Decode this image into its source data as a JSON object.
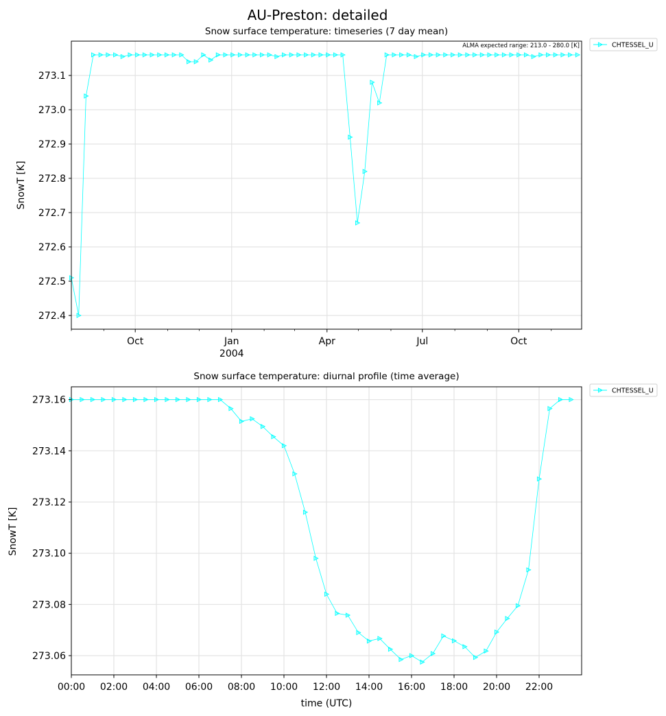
{
  "figure": {
    "suptitle": "AU-Preston: detailed"
  },
  "chart_data": [
    {
      "type": "line",
      "title": "Snow surface temperature: timeseries (7 day mean)",
      "xlabel": "",
      "ylabel": "SnowT [K]",
      "annotation": "ALMA expected range: 213.0 - 280.0 [K]",
      "legend": {
        "placement": "outside-top-right",
        "entries": [
          "CHTESSEL_U"
        ]
      },
      "grid": true,
      "xaxis_type": "date",
      "xlim": [
        "2003-08-01",
        "2004-11-30"
      ],
      "ylim": [
        272.36,
        273.2
      ],
      "yticks": [
        272.4,
        272.5,
        272.6,
        272.7,
        272.8,
        272.9,
        273.0,
        273.1
      ],
      "ytick_labels": [
        "272.4",
        "272.5",
        "272.6",
        "272.7",
        "272.8",
        "272.9",
        "273.0",
        "273.1"
      ],
      "xticks": [
        {
          "date": "2003-10-01",
          "label": "Oct",
          "sub": ""
        },
        {
          "date": "2004-01-01",
          "label": "Jan",
          "sub": "2004"
        },
        {
          "date": "2004-04-01",
          "label": "Apr",
          "sub": ""
        },
        {
          "date": "2004-07-01",
          "label": "Jul",
          "sub": ""
        },
        {
          "date": "2004-10-01",
          "label": "Oct",
          "sub": ""
        }
      ],
      "xminor_ticks": [
        "2003-08-01",
        "2003-09-01",
        "2003-11-01",
        "2003-12-01",
        "2004-02-01",
        "2004-03-01",
        "2004-05-01",
        "2004-06-01",
        "2004-08-01",
        "2004-09-01",
        "2004-11-01",
        "2004-12-01"
      ],
      "series": [
        {
          "name": "CHTESSEL_U",
          "color": "#00ffff",
          "marker": "triangle-right",
          "x": [
            "2003-08-01",
            "2003-08-08",
            "2003-08-15",
            "2003-08-22",
            "2003-08-29",
            "2003-09-05",
            "2003-09-12",
            "2003-09-19",
            "2003-09-26",
            "2003-10-03",
            "2003-10-10",
            "2003-10-17",
            "2003-10-24",
            "2003-10-31",
            "2003-11-07",
            "2003-11-14",
            "2003-11-21",
            "2003-11-28",
            "2003-12-05",
            "2003-12-12",
            "2003-12-19",
            "2003-12-26",
            "2004-01-02",
            "2004-01-09",
            "2004-01-16",
            "2004-01-23",
            "2004-01-30",
            "2004-02-06",
            "2004-02-13",
            "2004-02-20",
            "2004-02-27",
            "2004-03-05",
            "2004-03-12",
            "2004-03-19",
            "2004-03-26",
            "2004-04-02",
            "2004-04-09",
            "2004-04-16",
            "2004-04-23",
            "2004-04-30",
            "2004-05-07",
            "2004-05-14",
            "2004-05-21",
            "2004-05-28",
            "2004-06-04",
            "2004-06-11",
            "2004-06-18",
            "2004-06-25",
            "2004-07-02",
            "2004-07-09",
            "2004-07-16",
            "2004-07-23",
            "2004-07-30",
            "2004-08-06",
            "2004-08-13",
            "2004-08-20",
            "2004-08-27",
            "2004-09-03",
            "2004-09-10",
            "2004-09-17",
            "2004-09-24",
            "2004-10-01",
            "2004-10-08",
            "2004-10-15",
            "2004-10-22",
            "2004-10-29",
            "2004-11-05",
            "2004-11-12",
            "2004-11-19",
            "2004-11-26"
          ],
          "y": [
            272.51,
            272.4,
            273.04,
            273.16,
            273.16,
            273.16,
            273.16,
            273.155,
            273.16,
            273.16,
            273.16,
            273.16,
            273.16,
            273.16,
            273.16,
            273.16,
            273.14,
            273.14,
            273.16,
            273.145,
            273.16,
            273.16,
            273.16,
            273.16,
            273.16,
            273.16,
            273.16,
            273.16,
            273.155,
            273.16,
            273.16,
            273.16,
            273.16,
            273.16,
            273.16,
            273.16,
            273.16,
            273.16,
            272.92,
            272.67,
            272.82,
            273.08,
            273.02,
            273.16,
            273.16,
            273.16,
            273.16,
            273.155,
            273.16,
            273.16,
            273.16,
            273.16,
            273.16,
            273.16,
            273.16,
            273.16,
            273.16,
            273.16,
            273.16,
            273.16,
            273.16,
            273.16,
            273.16,
            273.155,
            273.16,
            273.16,
            273.16,
            273.16,
            273.16,
            273.16
          ]
        }
      ]
    },
    {
      "type": "line",
      "title": "Snow surface temperature: diurnal profile (time average)",
      "xlabel": "time (UTC)",
      "ylabel": "SnowT [K]",
      "legend": {
        "placement": "outside-top-right",
        "entries": [
          "CHTESSEL_U"
        ]
      },
      "grid": true,
      "xlim": [
        0,
        24
      ],
      "ylim": [
        273.0525,
        273.165
      ],
      "yticks": [
        273.06,
        273.08,
        273.1,
        273.12,
        273.14,
        273.16
      ],
      "ytick_labels": [
        "273.06",
        "273.08",
        "273.10",
        "273.12",
        "273.14",
        "273.16"
      ],
      "xticks": [
        0,
        2,
        4,
        6,
        8,
        10,
        12,
        14,
        16,
        18,
        20,
        22
      ],
      "xtick_labels": [
        "00:00",
        "02:00",
        "04:00",
        "06:00",
        "08:00",
        "10:00",
        "12:00",
        "14:00",
        "16:00",
        "18:00",
        "20:00",
        "22:00"
      ],
      "series": [
        {
          "name": "CHTESSEL_U",
          "color": "#00ffff",
          "marker": "triangle-right",
          "x": [
            0,
            0.5,
            1,
            1.5,
            2,
            2.5,
            3,
            3.5,
            4,
            4.5,
            5,
            5.5,
            6,
            6.5,
            7,
            7.5,
            8,
            8.5,
            9,
            9.5,
            10,
            10.5,
            11,
            11.5,
            12,
            12.5,
            13,
            13.5,
            14,
            14.5,
            15,
            15.5,
            16,
            16.5,
            17,
            17.5,
            18,
            18.5,
            19,
            19.5,
            20,
            20.5,
            21,
            21.5,
            22,
            22.5,
            23,
            23.5
          ],
          "y": [
            273.16,
            273.16,
            273.16,
            273.16,
            273.16,
            273.16,
            273.16,
            273.16,
            273.16,
            273.16,
            273.16,
            273.16,
            273.16,
            273.16,
            273.16,
            273.1565,
            273.1515,
            273.1525,
            273.1495,
            273.1455,
            273.142,
            273.131,
            273.116,
            273.098,
            273.084,
            273.0765,
            273.0758,
            273.069,
            273.0657,
            273.0667,
            273.0625,
            273.0585,
            273.06,
            273.0575,
            273.0608,
            273.0677,
            273.0658,
            273.0635,
            273.0593,
            273.0618,
            273.0692,
            273.0745,
            273.0795,
            273.0935,
            273.129,
            273.1565,
            273.16,
            273.16
          ]
        }
      ]
    }
  ]
}
